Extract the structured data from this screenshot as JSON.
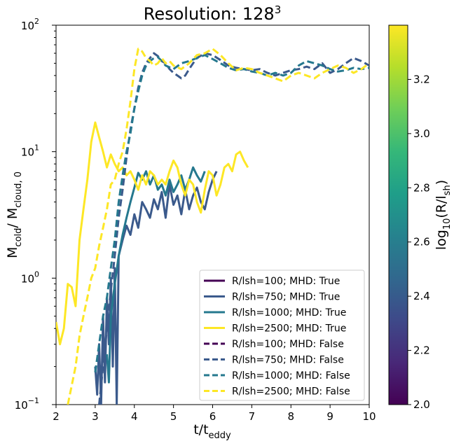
{
  "title": "Resolution: 128",
  "title_sup": "3",
  "chart_data": {
    "type": "line",
    "xlabel": "t/t",
    "xlabel_sub": "eddy",
    "ylabel_parts": [
      "M",
      "cold",
      "/ M",
      "cloud, 0"
    ],
    "xlim": [
      2,
      10
    ],
    "ylim": [
      0.1,
      100
    ],
    "yscale": "log",
    "x_ticks": [
      "2",
      "3",
      "4",
      "5",
      "6",
      "7",
      "8",
      "9",
      "10"
    ],
    "y_ticks": [
      {
        "value": 0.1,
        "base": "10",
        "exp": "−1"
      },
      {
        "value": 1,
        "base": "10",
        "exp": "0"
      },
      {
        "value": 10,
        "base": "10",
        "exp": "1"
      },
      {
        "value": 100,
        "base": "10",
        "exp": "2"
      }
    ],
    "legend_position": "lower-right",
    "series": [
      {
        "name": "R/lsh=100; MHD: True",
        "color": "#440154",
        "dashed": false,
        "points": []
      },
      {
        "name": "R/lsh=750; MHD: True",
        "color": "#3b5a8c",
        "dashed": false,
        "points": [
          [
            3.0,
            0.2
          ],
          [
            3.05,
            0.12
          ],
          [
            3.1,
            0.3
          ],
          [
            3.15,
            0.1
          ],
          [
            3.2,
            0.5
          ],
          [
            3.25,
            0.15
          ],
          [
            3.3,
            0.7
          ],
          [
            3.35,
            0.3
          ],
          [
            3.4,
            1.0
          ],
          [
            3.45,
            0.2
          ],
          [
            3.5,
            1.2
          ],
          [
            3.55,
            0.1
          ],
          [
            3.6,
            1.5
          ],
          [
            3.7,
            2.0
          ],
          [
            3.8,
            2.6
          ],
          [
            3.9,
            2.2
          ],
          [
            4.0,
            3.2
          ],
          [
            4.1,
            2.5
          ],
          [
            4.2,
            4.0
          ],
          [
            4.3,
            3.5
          ],
          [
            4.4,
            3.0
          ],
          [
            4.5,
            4.2
          ],
          [
            4.6,
            3.5
          ],
          [
            4.7,
            4.8
          ],
          [
            4.8,
            3.0
          ],
          [
            4.9,
            5.5
          ],
          [
            5.0,
            3.8
          ],
          [
            5.1,
            4.5
          ],
          [
            5.2,
            3.2
          ],
          [
            5.3,
            5.0
          ],
          [
            5.4,
            3.5
          ],
          [
            5.5,
            4.5
          ],
          [
            5.6,
            5.2
          ],
          [
            5.7,
            4.0
          ],
          [
            5.8,
            3.5
          ],
          [
            5.9,
            4.8
          ],
          [
            6.0,
            6.0
          ],
          [
            6.1,
            7.0
          ]
        ]
      },
      {
        "name": "R/lsh=1000; MHD: True",
        "color": "#25788e",
        "dashed": false,
        "points": [
          [
            3.3,
            0.25
          ],
          [
            3.35,
            0.15
          ],
          [
            3.4,
            0.5
          ],
          [
            3.5,
            0.9
          ],
          [
            3.6,
            1.5
          ],
          [
            3.7,
            2.2
          ],
          [
            3.8,
            3.0
          ],
          [
            3.9,
            4.0
          ],
          [
            4.0,
            5.2
          ],
          [
            4.1,
            6.8
          ],
          [
            4.2,
            6.0
          ],
          [
            4.3,
            7.0
          ],
          [
            4.4,
            5.5
          ],
          [
            4.5,
            6.5
          ],
          [
            4.6,
            5.0
          ],
          [
            4.7,
            5.5
          ],
          [
            4.8,
            4.5
          ],
          [
            4.9,
            6.0
          ],
          [
            5.0,
            4.8
          ],
          [
            5.1,
            5.5
          ],
          [
            5.2,
            6.5
          ],
          [
            5.3,
            5.0
          ],
          [
            5.4,
            6.0
          ],
          [
            5.5,
            7.5
          ],
          [
            5.6,
            6.5
          ],
          [
            5.7,
            5.8
          ],
          [
            5.8,
            7.0
          ]
        ]
      },
      {
        "name": "R/lsh=2500; MHD: True",
        "color": "#fde725",
        "dashed": false,
        "points": [
          [
            2.0,
            0.45
          ],
          [
            2.1,
            0.3
          ],
          [
            2.2,
            0.4
          ],
          [
            2.3,
            0.9
          ],
          [
            2.4,
            0.85
          ],
          [
            2.5,
            0.6
          ],
          [
            2.6,
            2.0
          ],
          [
            2.7,
            3.5
          ],
          [
            2.8,
            6.0
          ],
          [
            2.9,
            12.0
          ],
          [
            3.0,
            17.0
          ],
          [
            3.1,
            13.0
          ],
          [
            3.2,
            10.0
          ],
          [
            3.3,
            7.5
          ],
          [
            3.4,
            9.5
          ],
          [
            3.5,
            8.0
          ],
          [
            3.6,
            7.0
          ],
          [
            3.7,
            7.5
          ],
          [
            3.8,
            6.5
          ],
          [
            3.9,
            7.0
          ],
          [
            4.0,
            6.0
          ],
          [
            4.1,
            5.0
          ],
          [
            4.2,
            6.5
          ],
          [
            4.3,
            5.5
          ],
          [
            4.4,
            7.0
          ],
          [
            4.5,
            6.5
          ],
          [
            4.6,
            5.5
          ],
          [
            4.7,
            6.0
          ],
          [
            4.8,
            5.5
          ],
          [
            4.9,
            7.0
          ],
          [
            5.0,
            8.5
          ],
          [
            5.1,
            7.5
          ],
          [
            5.2,
            5.5
          ],
          [
            5.3,
            4.5
          ],
          [
            5.4,
            6.0
          ],
          [
            5.5,
            5.5
          ],
          [
            5.6,
            4.0
          ],
          [
            5.7,
            3.3
          ],
          [
            5.8,
            5.0
          ],
          [
            5.9,
            7.0
          ],
          [
            6.0,
            6.5
          ],
          [
            6.1,
            4.5
          ],
          [
            6.2,
            5.5
          ],
          [
            6.3,
            7.5
          ],
          [
            6.4,
            8.0
          ],
          [
            6.5,
            7.0
          ],
          [
            6.6,
            9.5
          ],
          [
            6.7,
            10.0
          ],
          [
            6.8,
            8.5
          ],
          [
            6.9,
            7.5
          ]
        ]
      },
      {
        "name": "R/lsh=100; MHD: False",
        "color": "#440154",
        "dashed": true,
        "points": []
      },
      {
        "name": "R/lsh=750; MHD: False",
        "color": "#3b5a8c",
        "dashed": true,
        "points": [
          [
            3.1,
            0.1
          ],
          [
            3.2,
            0.2
          ],
          [
            3.3,
            0.4
          ],
          [
            3.4,
            0.8
          ],
          [
            3.5,
            1.5
          ],
          [
            3.6,
            3.0
          ],
          [
            3.7,
            5.0
          ],
          [
            3.8,
            9.0
          ],
          [
            3.9,
            15.0
          ],
          [
            4.0,
            22.0
          ],
          [
            4.1,
            32.0
          ],
          [
            4.2,
            42.0
          ],
          [
            4.3,
            50.0
          ],
          [
            4.4,
            55.0
          ],
          [
            4.5,
            60.0
          ],
          [
            4.6,
            57.0
          ],
          [
            4.7,
            52.0
          ],
          [
            4.8,
            50.0
          ],
          [
            4.9,
            45.0
          ],
          [
            5.0,
            42.0
          ],
          [
            5.1,
            40.0
          ],
          [
            5.2,
            38.0
          ],
          [
            5.3,
            40.0
          ],
          [
            5.4,
            45.0
          ],
          [
            5.5,
            50.0
          ],
          [
            5.6,
            55.0
          ],
          [
            5.8,
            60.0
          ],
          [
            6.0,
            58.0
          ],
          [
            6.2,
            53.0
          ],
          [
            6.4,
            48.0
          ],
          [
            6.6,
            46.0
          ],
          [
            6.8,
            45.0
          ],
          [
            7.0,
            44.0
          ],
          [
            7.2,
            45.0
          ],
          [
            7.4,
            42.0
          ],
          [
            7.6,
            40.0
          ],
          [
            7.8,
            42.0
          ],
          [
            8.0,
            44.0
          ],
          [
            8.2,
            45.0
          ],
          [
            8.4,
            47.0
          ],
          [
            8.6,
            45.0
          ],
          [
            8.8,
            50.0
          ],
          [
            9.0,
            42.0
          ],
          [
            9.2,
            45.0
          ],
          [
            9.4,
            50.0
          ],
          [
            9.6,
            55.0
          ],
          [
            9.8,
            52.0
          ],
          [
            10.0,
            48.0
          ]
        ]
      },
      {
        "name": "R/lsh=1000; MHD: False",
        "color": "#25788e",
        "dashed": true,
        "points": [
          [
            3.0,
            0.18
          ],
          [
            3.1,
            0.3
          ],
          [
            3.2,
            0.5
          ],
          [
            3.3,
            0.7
          ],
          [
            3.4,
            1.2
          ],
          [
            3.5,
            2.0
          ],
          [
            3.6,
            4.0
          ],
          [
            3.7,
            6.5
          ],
          [
            3.8,
            10.0
          ],
          [
            3.9,
            14.0
          ],
          [
            4.0,
            22.0
          ],
          [
            4.1,
            30.0
          ],
          [
            4.2,
            40.0
          ],
          [
            4.3,
            48.0
          ],
          [
            4.4,
            52.0
          ],
          [
            4.5,
            55.0
          ],
          [
            4.6,
            56.0
          ],
          [
            4.7,
            52.0
          ],
          [
            4.8,
            48.0
          ],
          [
            5.0,
            45.0
          ],
          [
            5.2,
            50.0
          ],
          [
            5.4,
            52.0
          ],
          [
            5.6,
            55.0
          ],
          [
            5.8,
            58.0
          ],
          [
            6.0,
            54.0
          ],
          [
            6.2,
            50.0
          ],
          [
            6.4,
            46.0
          ],
          [
            6.6,
            44.0
          ],
          [
            6.8,
            45.0
          ],
          [
            7.0,
            43.0
          ],
          [
            7.2,
            42.0
          ],
          [
            7.4,
            40.0
          ],
          [
            7.6,
            42.0
          ],
          [
            7.8,
            40.0
          ],
          [
            8.0,
            42.0
          ],
          [
            8.2,
            48.0
          ],
          [
            8.4,
            52.0
          ],
          [
            8.6,
            50.0
          ],
          [
            8.8,
            48.0
          ],
          [
            9.0,
            45.0
          ],
          [
            9.2,
            43.0
          ],
          [
            9.4,
            44.0
          ],
          [
            9.6,
            46.0
          ],
          [
            9.8,
            45.0
          ],
          [
            10.0,
            46.0
          ]
        ]
      },
      {
        "name": "R/lsh=2500; MHD: False",
        "color": "#fde725",
        "dashed": true,
        "points": [
          [
            2.3,
            0.1
          ],
          [
            2.5,
            0.2
          ],
          [
            2.6,
            0.35
          ],
          [
            2.7,
            0.5
          ],
          [
            2.8,
            0.7
          ],
          [
            2.9,
            1.0
          ],
          [
            3.0,
            1.2
          ],
          [
            3.1,
            1.8
          ],
          [
            3.2,
            2.5
          ],
          [
            3.3,
            3.5
          ],
          [
            3.4,
            5.5
          ],
          [
            3.5,
            6.0
          ],
          [
            3.6,
            8.0
          ],
          [
            3.7,
            10.0
          ],
          [
            3.8,
            15.0
          ],
          [
            3.9,
            25.0
          ],
          [
            4.0,
            45.0
          ],
          [
            4.1,
            65.0
          ],
          [
            4.2,
            62.0
          ],
          [
            4.3,
            55.0
          ],
          [
            4.4,
            52.0
          ],
          [
            4.5,
            48.0
          ],
          [
            4.6,
            50.0
          ],
          [
            4.7,
            55.0
          ],
          [
            4.8,
            50.0
          ],
          [
            4.9,
            52.0
          ],
          [
            5.0,
            48.0
          ],
          [
            5.2,
            45.0
          ],
          [
            5.4,
            50.0
          ],
          [
            5.6,
            58.0
          ],
          [
            5.8,
            60.0
          ],
          [
            6.0,
            65.0
          ],
          [
            6.2,
            58.0
          ],
          [
            6.4,
            50.0
          ],
          [
            6.6,
            44.0
          ],
          [
            6.8,
            46.0
          ],
          [
            7.0,
            45.0
          ],
          [
            7.2,
            42.0
          ],
          [
            7.4,
            40.0
          ],
          [
            7.6,
            38.0
          ],
          [
            7.8,
            36.0
          ],
          [
            8.0,
            40.0
          ],
          [
            8.2,
            42.0
          ],
          [
            8.4,
            40.0
          ],
          [
            8.6,
            38.0
          ],
          [
            8.8,
            42.0
          ],
          [
            9.0,
            45.0
          ],
          [
            9.2,
            48.0
          ],
          [
            9.4,
            46.0
          ],
          [
            9.6,
            42.0
          ],
          [
            9.8,
            45.0
          ],
          [
            10.0,
            50.0
          ]
        ]
      }
    ]
  },
  "colorbar": {
    "label": "log",
    "label_sub": "10",
    "label_mid": "(R/l",
    "label_sub2": "sh",
    "label_end": ")",
    "range": [
      2.0,
      3.4
    ],
    "ticks": [
      "2.0",
      "2.2",
      "2.4",
      "2.6",
      "2.8",
      "3.0",
      "3.2"
    ],
    "colormap": [
      "#440154",
      "#482878",
      "#3e4989",
      "#31688e",
      "#26828e",
      "#1f9e89",
      "#35b779",
      "#6ece58",
      "#b5de2b",
      "#fde725"
    ]
  }
}
